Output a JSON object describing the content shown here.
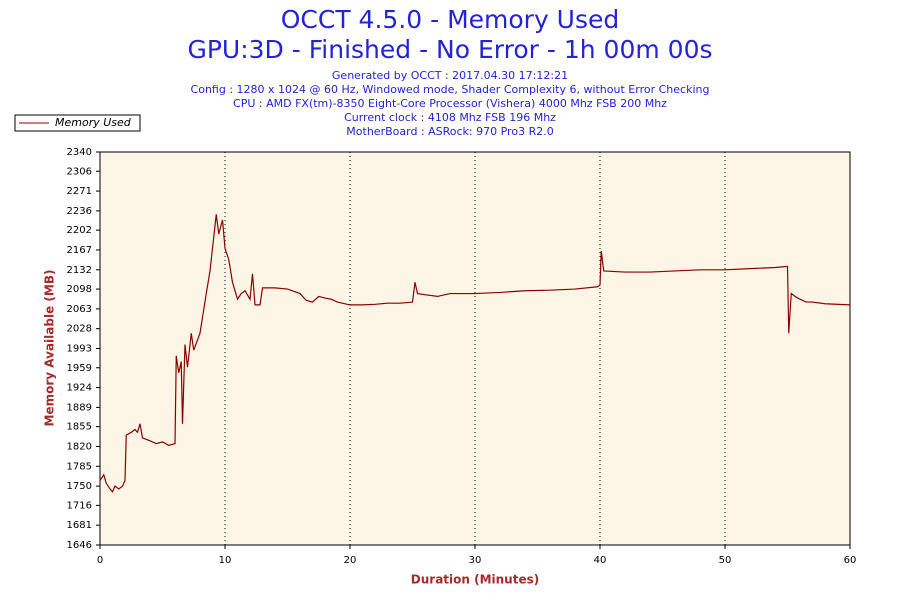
{
  "chart_data": {
    "type": "line",
    "title": "OCCT 4.5.0 - Memory Used",
    "subtitle": "GPU:3D - Finished - No Error - 1h 00m 00s",
    "info_lines": [
      "Generated by OCCT : 2017.04.30 17:12:21",
      "Config : 1280 x 1024 @ 60 Hz, Windowed mode, Shader Complexity 6, without Error Checking",
      "CPU : AMD FX(tm)-8350 Eight-Core Processor (Vishera) 4000 Mhz FSB 200 Mhz",
      "Current clock : 4108 Mhz FSB 196 Mhz",
      "MotherBoard : ASRock: 970 Pro3 R2.0"
    ],
    "xlabel": "Duration (Minutes)",
    "ylabel": "Memory Available (MB)",
    "xlim": [
      0,
      60
    ],
    "xticks": [
      0,
      10,
      20,
      30,
      40,
      50,
      60
    ],
    "ylim": [
      1646,
      2340
    ],
    "yticks": [
      1646,
      1681,
      1716,
      1750,
      1785,
      1820,
      1855,
      1889,
      1924,
      1959,
      1993,
      2028,
      2063,
      2098,
      2132,
      2167,
      2202,
      2236,
      2271,
      2306,
      2340
    ],
    "grid": true,
    "legend": "top-left",
    "series": [
      {
        "name": "Memory Used",
        "color": "#8b0000",
        "x": [
          0,
          0.3,
          0.5,
          0.8,
          1,
          1.2,
          1.5,
          1.8,
          2,
          2.1,
          2.5,
          2.8,
          3,
          3.2,
          3.4,
          4,
          4.5,
          5,
          5.5,
          6,
          6.1,
          6.3,
          6.5,
          6.6,
          6.8,
          7,
          7.3,
          7.5,
          8,
          8.5,
          8.8,
          9,
          9.3,
          9.5,
          9.8,
          10,
          10.3,
          10.6,
          11,
          11.3,
          11.6,
          12,
          12.2,
          12.4,
          12.8,
          13,
          13.5,
          14,
          15,
          16,
          16.5,
          17,
          17.5,
          18,
          18.5,
          19,
          20,
          21,
          22,
          23,
          24,
          25,
          25.2,
          25.4,
          26,
          27,
          28,
          29,
          30,
          32,
          34,
          36,
          38,
          39.8,
          40,
          40.1,
          40.3,
          42,
          44,
          46,
          48,
          50,
          52,
          54,
          55,
          55.1,
          55.3,
          55.6,
          56,
          56.5,
          57,
          58,
          60
        ],
        "values": [
          1760,
          1770,
          1755,
          1745,
          1740,
          1750,
          1745,
          1750,
          1760,
          1840,
          1845,
          1850,
          1845,
          1860,
          1835,
          1830,
          1825,
          1828,
          1822,
          1825,
          1980,
          1950,
          1970,
          1860,
          2000,
          1960,
          2020,
          1990,
          2020,
          2090,
          2130,
          2170,
          2230,
          2195,
          2220,
          2170,
          2150,
          2110,
          2080,
          2090,
          2095,
          2080,
          2125,
          2070,
          2070,
          2100,
          2100,
          2100,
          2098,
          2090,
          2078,
          2075,
          2085,
          2082,
          2080,
          2075,
          2070,
          2070,
          2071,
          2073,
          2073,
          2075,
          2110,
          2090,
          2088,
          2085,
          2090,
          2090,
          2090,
          2092,
          2095,
          2096,
          2098,
          2102,
          2105,
          2165,
          2130,
          2128,
          2128,
          2130,
          2132,
          2132,
          2134,
          2136,
          2138,
          2020,
          2090,
          2085,
          2080,
          2075,
          2075,
          2072,
          2070
        ]
      }
    ]
  }
}
